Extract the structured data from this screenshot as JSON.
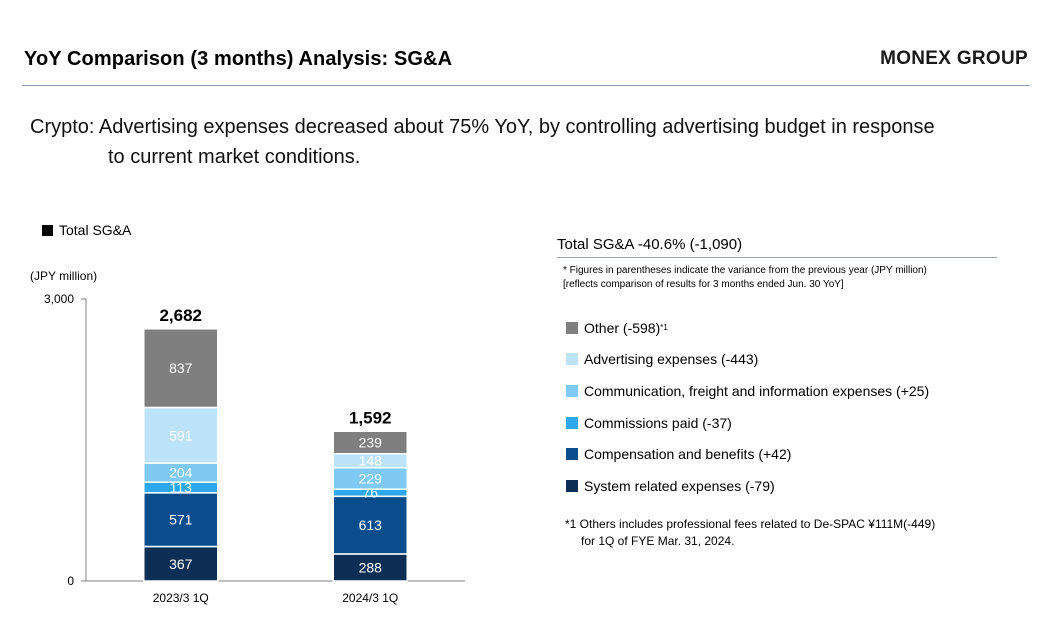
{
  "header": {
    "title": "YoY Comparison (3 months) Analysis: SG&A",
    "brand": "MONEX GROUP"
  },
  "headline": {
    "line1": "Crypto: Advertising expenses decreased about 75% YoY, by controlling advertising budget in response",
    "line2": "to current market conditions."
  },
  "sidebar": {
    "title": "Total SG&A -40.6% (-1,090)",
    "note_line1": "* Figures in parentheses indicate the variance from the previous year (JPY million)",
    "note_line2": "[reflects comparison of results for 3 months ended Jun. 30 YoY]",
    "items": [
      {
        "label": "Other (-598)",
        "sup": "*1",
        "color": "#7f7f7f"
      },
      {
        "label": "Advertising expenses (-443)",
        "sup": "",
        "color": "#bde3fb"
      },
      {
        "label": "Communication, freight and information expenses (+25)",
        "sup": "",
        "color": "#7fcaf5"
      },
      {
        "label": "Commissions paid (-37)",
        "sup": "",
        "color": "#2ea8ec"
      },
      {
        "label": "Compensation and benefits (+42)",
        "sup": "",
        "color": "#0a4d8c"
      },
      {
        "label": "System related expenses (-79)",
        "sup": "",
        "color": "#0d2f55"
      }
    ],
    "footnote_line1": "*1 Others includes professional fees related to De-SPAC ¥111M(-449)",
    "footnote_line2": "for 1Q of FYE Mar. 31, 2024."
  },
  "chart_data": {
    "type": "bar",
    "stacked": true,
    "legend_label": "Total SG&A",
    "unit_label": "(JPY million)",
    "categories": [
      "2023/3 1Q",
      "2024/3 1Q"
    ],
    "totals": [
      2682,
      1592
    ],
    "total_labels": [
      "2,682",
      "1,592"
    ],
    "ylim": [
      0,
      3000
    ],
    "ytick_labels": [
      "0",
      "3,000"
    ],
    "yticks": [
      0,
      3000
    ],
    "series": [
      {
        "name": "System related expenses",
        "values": [
          367,
          288
        ],
        "color": "#0d2f55"
      },
      {
        "name": "Compensation and benefits",
        "values": [
          571,
          613
        ],
        "color": "#0a4d8c"
      },
      {
        "name": "Commissions paid",
        "values": [
          113,
          76
        ],
        "color": "#2ea8ec"
      },
      {
        "name": "Communication, freight and information expenses",
        "values": [
          204,
          229
        ],
        "color": "#7fcaf5"
      },
      {
        "name": "Advertising expenses",
        "values": [
          591,
          148
        ],
        "color": "#bde3fb"
      },
      {
        "name": "Other",
        "values": [
          837,
          239
        ],
        "color": "#7f7f7f"
      }
    ]
  }
}
